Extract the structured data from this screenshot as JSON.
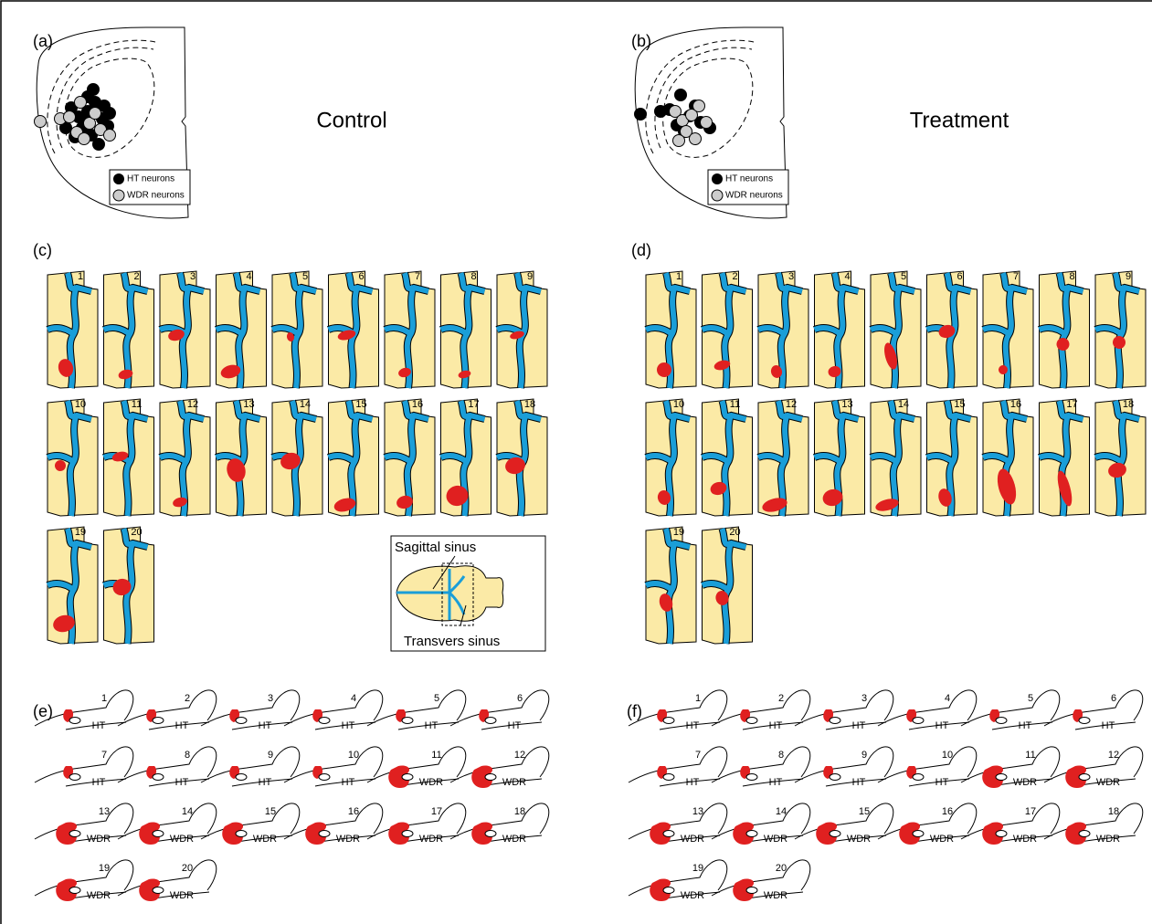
{
  "neuron_panels": [
    {
      "label": "(a)",
      "title": "Control",
      "legend": [
        "HT neurons",
        "WDR neurons"
      ]
    },
    {
      "label": "(b)",
      "title": "Treatment",
      "legend": [
        "HT neurons",
        "WDR neurons"
      ]
    }
  ],
  "sinus_panels": [
    {
      "label": "(c)",
      "items": [
        1,
        2,
        3,
        4,
        5,
        6,
        7,
        8,
        9,
        10,
        11,
        12,
        13,
        14,
        15,
        16,
        17,
        18,
        19,
        20
      ]
    },
    {
      "label": "(d)",
      "items": [
        1,
        2,
        3,
        4,
        5,
        6,
        7,
        8,
        9,
        10,
        11,
        12,
        13,
        14,
        15,
        16,
        17,
        18,
        19,
        20
      ]
    }
  ],
  "inset": {
    "sagittal": "Sagittal sinus",
    "transverse": "Transvers sinus"
  },
  "cord_panels": [
    {
      "label": "(e)",
      "items": [
        {
          "n": 1,
          "type": "HT"
        },
        {
          "n": 2,
          "type": "HT"
        },
        {
          "n": 3,
          "type": "HT"
        },
        {
          "n": 4,
          "type": "HT"
        },
        {
          "n": 5,
          "type": "HT"
        },
        {
          "n": 6,
          "type": "HT"
        },
        {
          "n": 7,
          "type": "HT"
        },
        {
          "n": 8,
          "type": "HT"
        },
        {
          "n": 9,
          "type": "HT"
        },
        {
          "n": 10,
          "type": "HT"
        },
        {
          "n": 11,
          "type": "WDR"
        },
        {
          "n": 12,
          "type": "WDR"
        },
        {
          "n": 13,
          "type": "WDR"
        },
        {
          "n": 14,
          "type": "WDR"
        },
        {
          "n": 15,
          "type": "WDR"
        },
        {
          "n": 16,
          "type": "WDR"
        },
        {
          "n": 17,
          "type": "WDR"
        },
        {
          "n": 18,
          "type": "WDR"
        },
        {
          "n": 19,
          "type": "WDR"
        },
        {
          "n": 20,
          "type": "WDR"
        }
      ]
    },
    {
      "label": "(f)",
      "items": [
        {
          "n": 1,
          "type": "HT"
        },
        {
          "n": 2,
          "type": "HT"
        },
        {
          "n": 3,
          "type": "HT"
        },
        {
          "n": 4,
          "type": "HT"
        },
        {
          "n": 5,
          "type": "HT"
        },
        {
          "n": 6,
          "type": "HT"
        },
        {
          "n": 7,
          "type": "HT"
        },
        {
          "n": 8,
          "type": "HT"
        },
        {
          "n": 9,
          "type": "HT"
        },
        {
          "n": 10,
          "type": "HT"
        },
        {
          "n": 11,
          "type": "WDR"
        },
        {
          "n": 12,
          "type": "WDR"
        },
        {
          "n": 13,
          "type": "WDR"
        },
        {
          "n": 14,
          "type": "WDR"
        },
        {
          "n": 15,
          "type": "WDR"
        },
        {
          "n": 16,
          "type": "WDR"
        },
        {
          "n": 17,
          "type": "WDR"
        },
        {
          "n": 18,
          "type": "WDR"
        },
        {
          "n": 19,
          "type": "WDR"
        },
        {
          "n": 20,
          "type": "WDR"
        }
      ]
    }
  ]
}
